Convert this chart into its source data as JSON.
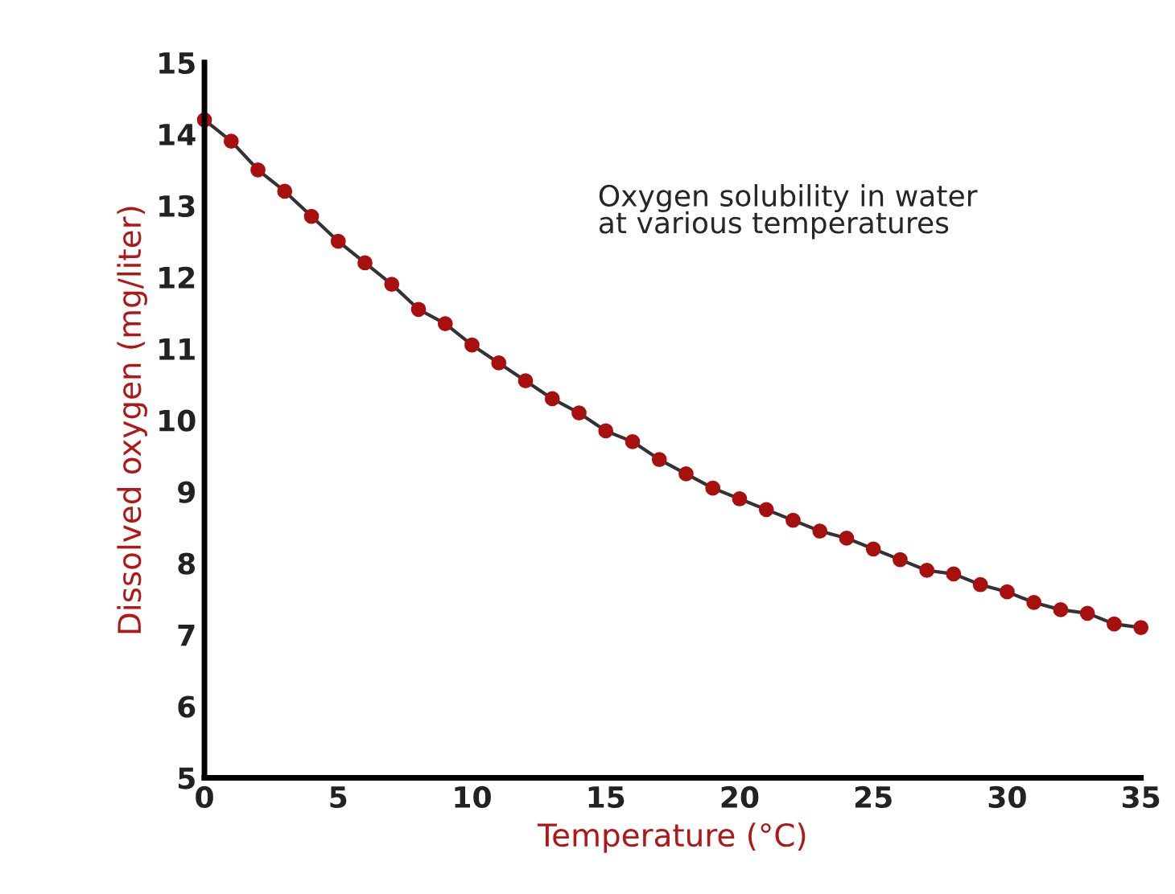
{
  "chart_data": {
    "type": "line",
    "xlabel": "Temperature (°C)",
    "ylabel": "Dissolved oxygen (mg/liter)",
    "annotations": [
      "Oxygen solubility in water\nat various temperatures"
    ],
    "x": [
      0,
      1,
      2,
      3,
      4,
      5,
      6,
      7,
      8,
      9,
      10,
      11,
      12,
      13,
      14,
      15,
      16,
      17,
      18,
      19,
      20,
      21,
      22,
      23,
      24,
      25,
      26,
      27,
      28,
      29,
      30,
      31,
      32,
      33,
      34,
      35
    ],
    "series": [
      {
        "color": "#a81010",
        "values": [
          14.2,
          13.9,
          13.5,
          13.2,
          12.85,
          12.5,
          12.2,
          11.9,
          11.55,
          11.35,
          11.05,
          10.8,
          10.55,
          10.3,
          10.1,
          9.85,
          9.7,
          9.45,
          9.25,
          9.05,
          8.9,
          8.75,
          8.6,
          8.45,
          8.35,
          8.2,
          8.05,
          7.9,
          7.85,
          7.7,
          7.6,
          7.45,
          7.35,
          7.3,
          7.15,
          7.1
        ]
      }
    ],
    "xlim": [
      0,
      35
    ],
    "xticks": [
      0,
      5,
      10,
      15,
      20,
      25,
      30,
      35
    ],
    "ylim": [
      5,
      15
    ],
    "yticks": [
      5,
      6,
      7,
      8,
      9,
      10,
      11,
      12,
      13,
      14,
      15
    ],
    "grid": false,
    "marker": "circle",
    "line_style": "solid"
  }
}
